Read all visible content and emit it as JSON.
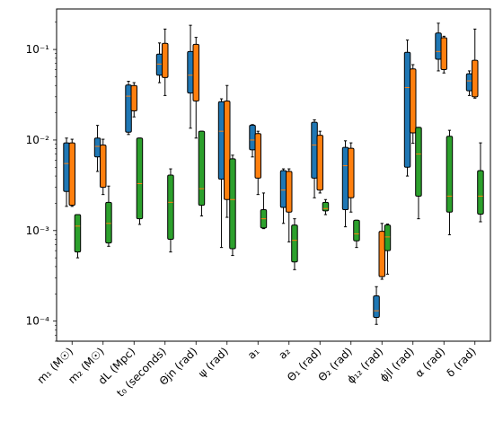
{
  "chart_data": {
    "type": "box",
    "y_scale": "log",
    "ylim": [
      6e-05,
      0.28
    ],
    "y_ticks": [
      {
        "value": 0.0001,
        "label": "10⁻⁴"
      },
      {
        "value": 0.001,
        "label": "10⁻³"
      },
      {
        "value": 0.01,
        "label": "10⁻²"
      },
      {
        "value": 0.1,
        "label": "10⁻¹"
      }
    ],
    "categories": [
      "m₁ (M☉)",
      "m₂ (M☉)",
      "dL (Mpc)",
      "t₀ (seconds)",
      "Θjn (rad)",
      "ψ (rad)",
      "a₁",
      "a₂",
      "Θ₁ (rad)",
      "Θ₂ (rad)",
      "ϕ₁₂ (rad)",
      "ϕjl (rad)",
      "α (rad)",
      "δ (rad)"
    ],
    "series": [
      {
        "color": "#1f77b4",
        "boxes": [
          {
            "min": 0.00185,
            "q1": 0.0027,
            "median": 0.0055,
            "q3": 0.0093,
            "max": 0.0105
          },
          {
            "min": 0.0045,
            "q1": 0.0065,
            "median": 0.0085,
            "q3": 0.0105,
            "max": 0.0145
          },
          {
            "min": 0.0115,
            "q1": 0.0122,
            "median": 0.0305,
            "q3": 0.0405,
            "max": 0.0445
          },
          {
            "min": 0.043,
            "q1": 0.052,
            "median": 0.069,
            "q3": 0.089,
            "max": 0.118
          },
          {
            "min": 0.0135,
            "q1": 0.033,
            "median": 0.052,
            "q3": 0.095,
            "max": 0.185
          },
          {
            "min": 0.00065,
            "q1": 0.0037,
            "median": 0.0125,
            "q3": 0.0265,
            "max": 0.0285
          },
          {
            "min": 0.0065,
            "q1": 0.0078,
            "median": 0.01,
            "q3": 0.0146,
            "max": 0.0148
          },
          {
            "min": 0.0012,
            "q1": 0.0018,
            "median": 0.0028,
            "q3": 0.0046,
            "max": 0.0048
          },
          {
            "min": 0.0023,
            "q1": 0.0038,
            "median": 0.0088,
            "q3": 0.0157,
            "max": 0.0167
          },
          {
            "min": 0.0011,
            "q1": 0.0017,
            "median": 0.0052,
            "q3": 0.0083,
            "max": 0.0098
          },
          {
            "min": 9.2e-05,
            "q1": 0.00011,
            "median": 0.00013,
            "q3": 0.00019,
            "max": 0.00024
          },
          {
            "min": 0.004,
            "q1": 0.005,
            "median": 0.038,
            "q3": 0.093,
            "max": 0.127
          },
          {
            "min": 0.058,
            "q1": 0.078,
            "median": 0.095,
            "q3": 0.152,
            "max": 0.195
          },
          {
            "min": 0.031,
            "q1": 0.035,
            "median": 0.045,
            "q3": 0.054,
            "max": 0.058
          }
        ]
      },
      {
        "color": "#ff7f0e",
        "boxes": [
          {
            "min": 0.00185,
            "q1": 0.0019,
            "median": 0.0062,
            "q3": 0.0093,
            "max": 0.0102
          },
          {
            "min": 0.0025,
            "q1": 0.003,
            "median": 0.0055,
            "q3": 0.0088,
            "max": 0.0102
          },
          {
            "min": 0.018,
            "q1": 0.021,
            "median": 0.036,
            "q3": 0.04,
            "max": 0.043
          },
          {
            "min": 0.031,
            "q1": 0.049,
            "median": 0.086,
            "q3": 0.117,
            "max": 0.168
          },
          {
            "min": 0.0105,
            "q1": 0.027,
            "median": 0.058,
            "q3": 0.114,
            "max": 0.136
          },
          {
            "min": 0.0014,
            "q1": 0.0022,
            "median": 0.0095,
            "q3": 0.027,
            "max": 0.04
          },
          {
            "min": 0.0025,
            "q1": 0.0038,
            "median": 0.0088,
            "q3": 0.0118,
            "max": 0.0125
          },
          {
            "min": 0.00075,
            "q1": 0.0016,
            "median": 0.0033,
            "q3": 0.0045,
            "max": 0.0048
          },
          {
            "min": 0.0026,
            "q1": 0.0028,
            "median": 0.0062,
            "q3": 0.0113,
            "max": 0.0125
          },
          {
            "min": 0.0016,
            "q1": 0.0023,
            "median": 0.0052,
            "q3": 0.0081,
            "max": 0.0093
          },
          {
            "min": 0.00029,
            "q1": 0.00031,
            "median": 0.00058,
            "q3": 0.00098,
            "max": 0.0012
          },
          {
            "min": 0.0092,
            "q1": 0.012,
            "median": 0.036,
            "q3": 0.061,
            "max": 0.068
          },
          {
            "min": 0.055,
            "q1": 0.06,
            "median": 0.12,
            "q3": 0.135,
            "max": 0.14
          },
          {
            "min": 0.029,
            "q1": 0.03,
            "median": 0.053,
            "q3": 0.076,
            "max": 0.168
          }
        ]
      },
      {
        "color": "#2ca02c",
        "boxes": [
          {
            "min": 0.0005,
            "q1": 0.00058,
            "median": 0.00112,
            "q3": 0.0015,
            "max": 0.0015
          },
          {
            "min": 0.00067,
            "q1": 0.00073,
            "median": 0.0012,
            "q3": 0.00205,
            "max": 0.0031
          },
          {
            "min": 0.00117,
            "q1": 0.00135,
            "median": 0.0033,
            "q3": 0.0105,
            "max": 0.0105
          },
          {
            "min": 0.00058,
            "q1": 0.0008,
            "median": 0.00205,
            "q3": 0.0041,
            "max": 0.0048
          },
          {
            "min": 0.00145,
            "q1": 0.0019,
            "median": 0.0029,
            "q3": 0.0125,
            "max": 0.0125
          },
          {
            "min": 0.00053,
            "q1": 0.00063,
            "median": 0.0022,
            "q3": 0.0062,
            "max": 0.0068
          },
          {
            "min": 0.00105,
            "q1": 0.00107,
            "median": 0.00135,
            "q3": 0.0017,
            "max": 0.0026
          },
          {
            "min": 0.00037,
            "q1": 0.00045,
            "median": 0.00078,
            "q3": 0.00115,
            "max": 0.00135
          },
          {
            "min": 0.0015,
            "q1": 0.00165,
            "median": 0.00175,
            "q3": 0.00205,
            "max": 0.0022
          },
          {
            "min": 0.00065,
            "q1": 0.00077,
            "median": 0.00092,
            "q3": 0.0013,
            "max": 0.0013
          },
          {
            "min": 0.00033,
            "q1": 0.0006,
            "median": 0.00085,
            "q3": 0.00115,
            "max": 0.00118
          },
          {
            "min": 0.00135,
            "q1": 0.0024,
            "median": 0.007,
            "q3": 0.0138,
            "max": 0.0138
          },
          {
            "min": 0.0009,
            "q1": 0.0016,
            "median": 0.0024,
            "q3": 0.011,
            "max": 0.0128
          },
          {
            "min": 0.00125,
            "q1": 0.00152,
            "median": 0.0024,
            "q3": 0.0046,
            "max": 0.0093
          }
        ]
      }
    ],
    "median_color": "#ff7f0e",
    "grid": false,
    "legend": false
  }
}
